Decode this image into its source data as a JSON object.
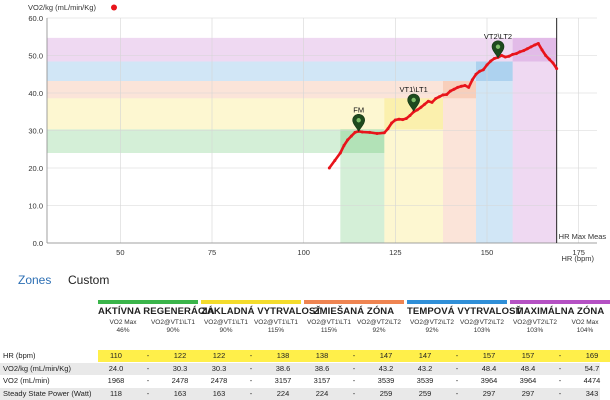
{
  "chart_data": {
    "type": "line",
    "ylabel": "VO2/kg (mL/min/Kg)",
    "xlabel": "HR (bpm)",
    "xlim": [
      30,
      180
    ],
    "ylim": [
      0,
      60
    ],
    "x_ticks": [
      50,
      75,
      100,
      125,
      150,
      175
    ],
    "y_ticks": [
      0,
      10,
      20,
      30,
      40,
      50,
      60
    ],
    "y_tick_labels": [
      "0.0",
      "10.0",
      "20.0",
      "30.0",
      "40.0",
      "50.0",
      "60.0"
    ],
    "grid": true,
    "legend": "top-left",
    "series": [
      {
        "name": "VO2/kg (mL/min/Kg)",
        "color": "#e8141b",
        "x": [
          107,
          108.5,
          110,
          111,
          112,
          113,
          114,
          115,
          116,
          118,
          120,
          122,
          123,
          124,
          125,
          126,
          127,
          128,
          129,
          130,
          131,
          132,
          133,
          134,
          135,
          136,
          137,
          138,
          139,
          140,
          141,
          142,
          143,
          144,
          145,
          146,
          147,
          148,
          149,
          150,
          151,
          152,
          153,
          154,
          155,
          156,
          157,
          158,
          159,
          160,
          161,
          162,
          163,
          164,
          165,
          166,
          167,
          168,
          169
        ],
        "y": [
          20,
          22,
          24,
          26,
          27.5,
          28.5,
          29.5,
          29.8,
          29.6,
          29.5,
          29.2,
          29.4,
          30.5,
          32,
          32.8,
          33,
          32.9,
          33.2,
          34,
          35,
          35.5,
          36.2,
          37,
          37.8,
          37.5,
          38.5,
          39,
          39.5,
          39.6,
          40.5,
          41,
          41.5,
          41.8,
          42,
          41.5,
          43.5,
          45,
          45.8,
          46.2,
          47.5,
          48.5,
          49.2,
          49.5,
          50,
          49.6,
          49.8,
          50.3,
          50.5,
          51,
          51.3,
          51.8,
          52.3,
          52.8,
          53.2,
          51.5,
          50,
          49,
          48,
          46.5
        ]
      }
    ],
    "markers": [
      {
        "label": "FM",
        "x": 115,
        "y": 29.8
      },
      {
        "label": "VT1\\LT1",
        "x": 130,
        "y": 35.2
      },
      {
        "label": "VT2\\LT2",
        "x": 153,
        "y": 49.4
      }
    ],
    "vline": {
      "label": "HR Max Meas",
      "x": 169
    },
    "zones": [
      {
        "name": "AKTÍVNA REGENERÁCIA",
        "color": "#3ab54a",
        "hr_end": 122,
        "vo2_end": 30.3
      },
      {
        "name": "ZÁKLADNÁ VYTRVALOSŤ",
        "color": "#f4dc2c",
        "hr_end": 138,
        "vo2_end": 38.6
      },
      {
        "name": "ZMIEŠANÁ ZÓNA",
        "color": "#ef8451",
        "hr_end": 147,
        "vo2_end": 43.2
      },
      {
        "name": "TEMPOVÁ VYTRVALOSŤ",
        "color": "#2f8fd8",
        "hr_end": 157,
        "vo2_end": 48.4
      },
      {
        "name": "MAXIMÁLNA ZÓNA",
        "color": "#b551c4",
        "hr_end": 169,
        "vo2_end": 54.7
      }
    ],
    "zone_start": {
      "hr": 110,
      "vo2": 24.0
    }
  },
  "tabs": {
    "zones": "Zones",
    "custom": "Custom"
  },
  "table": {
    "zones": [
      {
        "name": "AKTÍVNA REGENERÁCIA",
        "color": "#3ab54a",
        "sub_left": [
          "VO2 Max",
          "46%"
        ],
        "sub_right": [
          "VO2@VT1\\LT1",
          "90%"
        ]
      },
      {
        "name": "ZÁKLADNÁ VYTRVALOSŤ",
        "color": "#f4dc2c",
        "sub_left": [
          "VO2@VT1\\LT1",
          "90%"
        ],
        "sub_right": [
          "VO2@VT1\\LT1",
          "115%"
        ]
      },
      {
        "name": "ZMIEŠANÁ ZÓNA",
        "color": "#ef8451",
        "sub_left": [
          "VO2@VT1\\LT1",
          "115%"
        ],
        "sub_right": [
          "VO2@VT2\\LT2",
          "92%"
        ]
      },
      {
        "name": "TEMPOVÁ VYTRVALOSŤ",
        "color": "#2f8fd8",
        "sub_left": [
          "VO2@VT2\\LT2",
          "92%"
        ],
        "sub_right": [
          "VO2@VT2\\LT2",
          "103%"
        ]
      },
      {
        "name": "MAXIMÁLNA ZÓNA",
        "color": "#b551c4",
        "sub_left": [
          "VO2@VT2\\LT2",
          "103%"
        ],
        "sub_right": [
          "VO2 Max",
          "104%"
        ]
      }
    ],
    "rows": [
      {
        "label": "HR (bpm)",
        "highlight": true,
        "values": [
          [
            "110",
            "122"
          ],
          [
            "122",
            "138"
          ],
          [
            "138",
            "147"
          ],
          [
            "147",
            "157"
          ],
          [
            "157",
            "169"
          ]
        ]
      },
      {
        "label": "VO2/kg (mL/min/Kg)",
        "highlight": false,
        "values": [
          [
            "24.0",
            "30.3"
          ],
          [
            "30.3",
            "38.6"
          ],
          [
            "38.6",
            "43.2"
          ],
          [
            "43.2",
            "48.4"
          ],
          [
            "48.4",
            "54.7"
          ]
        ]
      },
      {
        "label": "VO2 (mL/min)",
        "highlight": false,
        "values": [
          [
            "1968",
            "2478"
          ],
          [
            "2478",
            "3157"
          ],
          [
            "3157",
            "3539"
          ],
          [
            "3539",
            "3964"
          ],
          [
            "3964",
            "4474"
          ]
        ]
      },
      {
        "label": "Steady State Power (Watt)",
        "highlight": false,
        "values": [
          [
            "118",
            "163"
          ],
          [
            "163",
            "224"
          ],
          [
            "224",
            "259"
          ],
          [
            "259",
            "297"
          ],
          [
            "297",
            "343"
          ]
        ]
      }
    ],
    "dash": "-"
  }
}
